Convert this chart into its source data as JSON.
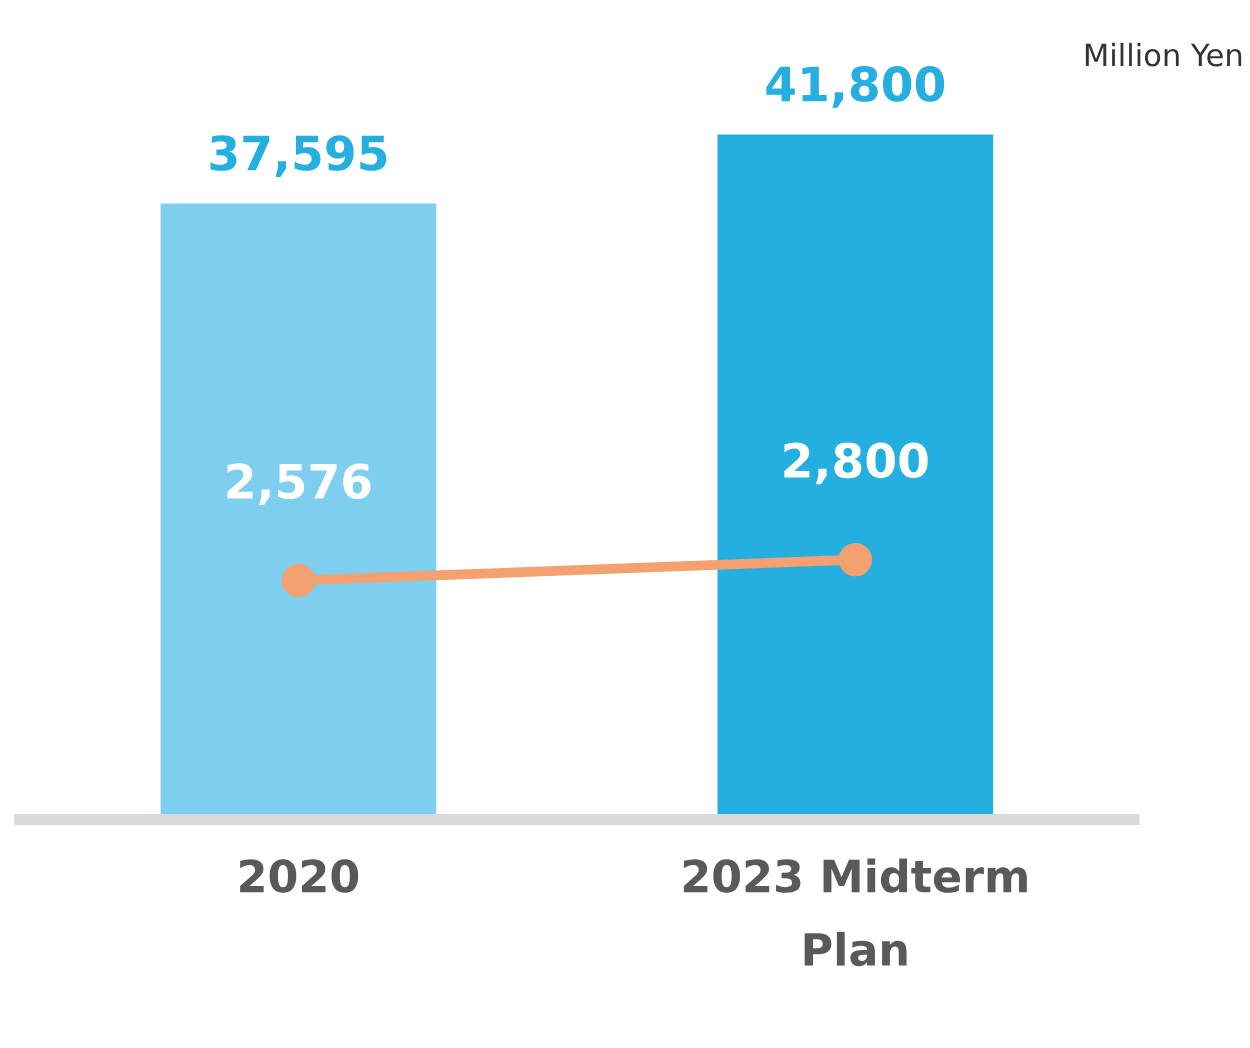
{
  "chart_data": {
    "type": "bar",
    "categories": [
      "2020",
      "2023 Midterm\nPlan"
    ],
    "series": [
      {
        "colors": [
          "#7ecef0",
          "#25afe0"
        ],
        "values": [
          37595,
          41800
        ],
        "value_labels": [
          "37,595",
          "41,800"
        ]
      },
      {
        "type": "line",
        "axis": "y2",
        "color": "#f4a070",
        "marker": "circle",
        "line_style": "solid",
        "values": [
          2576,
          2800
        ],
        "value_labels": [
          "2,576",
          "2,800"
        ]
      }
    ],
    "tick_labels": "x",
    "grid": false,
    "legend": false,
    "annotations": [
      "Million Yen"
    ]
  }
}
